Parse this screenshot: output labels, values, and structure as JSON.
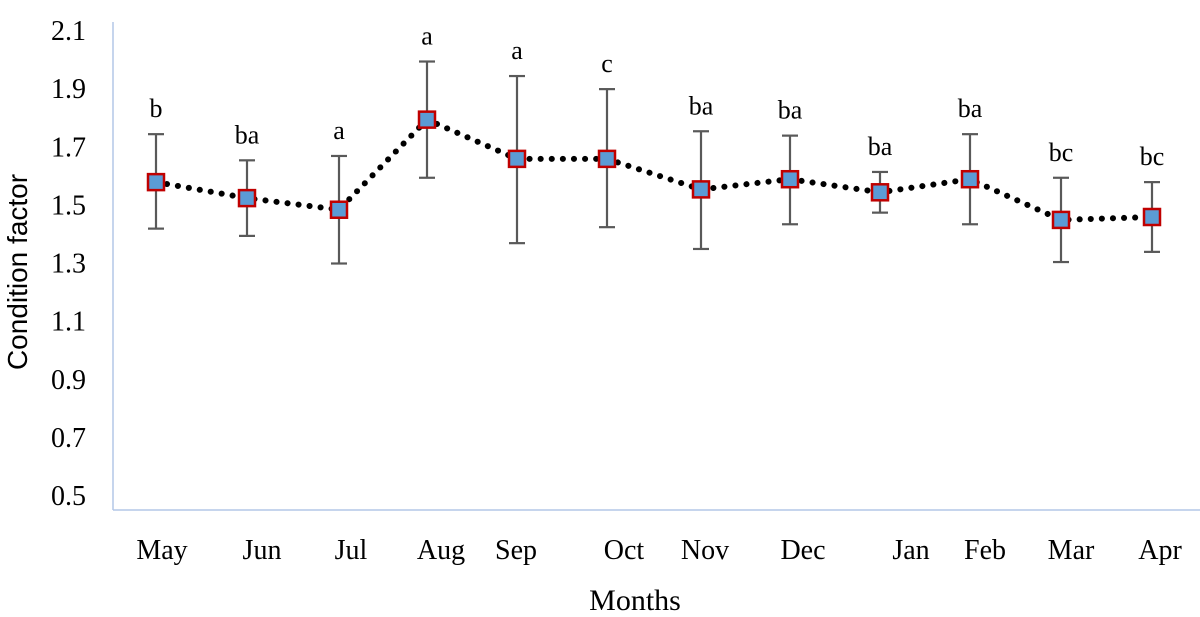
{
  "chart_data": {
    "type": "line",
    "title": "",
    "xlabel": "Months",
    "ylabel": "Condition factor",
    "ylim": [
      0.5,
      2.1
    ],
    "yticks": [
      0.5,
      0.7,
      0.9,
      1.1,
      1.3,
      1.5,
      1.7,
      1.9,
      2.1
    ],
    "categories": [
      "May",
      "Jun",
      "Jul",
      "Aug",
      "Sep",
      "Oct",
      "Nov",
      "Dec",
      "Jan",
      "Feb",
      "Mar",
      "Apr"
    ],
    "series": [
      {
        "values": [
          1.58,
          1.525,
          1.485,
          1.795,
          1.66,
          1.66,
          1.555,
          1.59,
          1.545,
          1.59,
          1.45,
          1.46
        ],
        "error_low": [
          1.42,
          1.395,
          1.3,
          1.595,
          1.37,
          1.425,
          1.35,
          1.435,
          1.475,
          1.435,
          1.305,
          1.34
        ],
        "error_high": [
          1.745,
          1.655,
          1.67,
          1.995,
          1.945,
          1.9,
          1.755,
          1.74,
          1.615,
          1.745,
          1.595,
          1.58
        ],
        "significance": [
          "b",
          "ba",
          "a",
          "a",
          "a",
          "c",
          "ba",
          "ba",
          "ba",
          "ba",
          "bc",
          "bc"
        ],
        "line_style": "dotted",
        "line_color": "#000000",
        "marker": "square",
        "marker_fill": "#5b9bd5",
        "marker_edge": "#c00000",
        "errorbar_color": "#595959"
      }
    ],
    "grid": false,
    "legend": "none"
  }
}
